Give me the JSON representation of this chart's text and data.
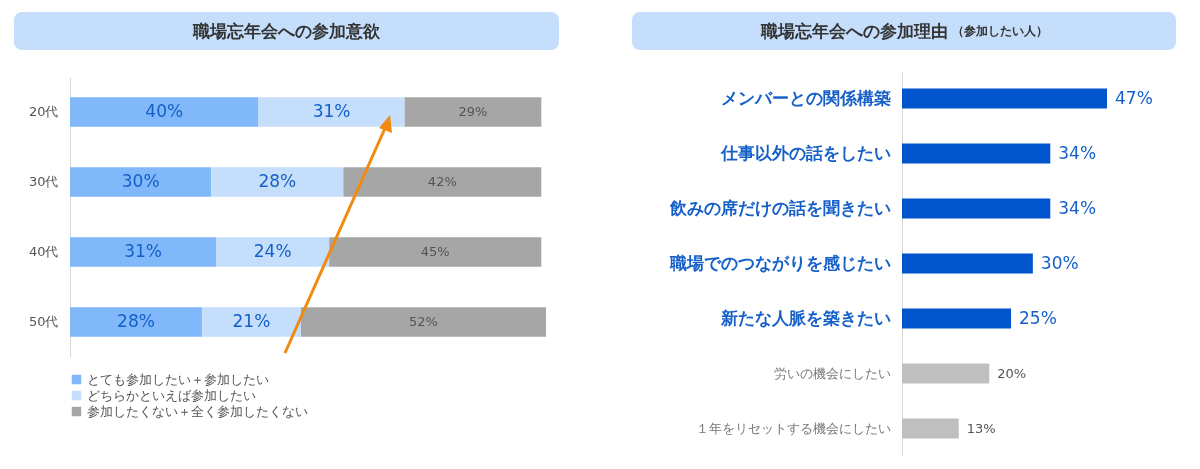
{
  "chart_data": [
    {
      "type": "bar",
      "title": "職場忘年会への参加意欲",
      "orientation": "horizontal",
      "stacked": true,
      "categories": [
        "20代",
        "30代",
        "40代",
        "50代"
      ],
      "series": [
        {
          "name": "とても参加したい＋参加したい",
          "color": "#80b8fa",
          "values": [
            40,
            30,
            31,
            28
          ],
          "value_labels": [
            "40%",
            "30%",
            "31%",
            "28%"
          ]
        },
        {
          "name": "どちらかといえば参加したい",
          "color": "#c5defc",
          "values": [
            31,
            28,
            24,
            21
          ],
          "value_labels": [
            "31%",
            "28%",
            "24%",
            "21%"
          ]
        },
        {
          "name": "参加したくない＋全く参加したくない",
          "color": "#a6a6a6",
          "values": [
            29,
            42,
            45,
            52
          ],
          "value_labels": [
            "29%",
            "42%",
            "45%",
            "52%"
          ]
        }
      ],
      "xlim": [
        0,
        101
      ],
      "tick_labels": "y",
      "legend": "bottom"
    },
    {
      "type": "bar",
      "title": "職場忘年会への参加理由",
      "subtitle": "（参加したい人）",
      "orientation": "horizontal",
      "categories": [
        "メンバーとの関係構築",
        "仕事以外の話をしたい",
        "飲みの席だけの話を聞きたい",
        "職場でのつながりを感じたい",
        "新たな人脈を築きたい",
        "労いの機会にしたい",
        "１年をリセットする機会にしたい"
      ],
      "values": [
        47,
        34,
        34,
        30,
        25,
        20,
        13
      ],
      "colors": [
        "#0055cc",
        "#0055cc",
        "#0055cc",
        "#0055cc",
        "#0055cc",
        "#bfbfbf",
        "#bfbfbf"
      ],
      "value_labels": [
        "47%",
        "34%",
        "34%",
        "30%",
        "25%",
        "20%",
        "13%"
      ],
      "tick_labels": "y"
    }
  ]
}
